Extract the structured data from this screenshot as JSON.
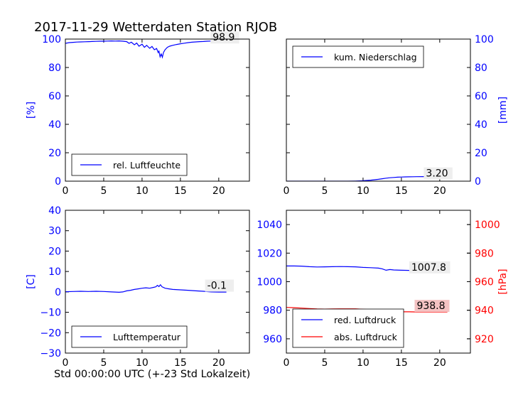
{
  "title": "2017-11-29 Wetterdaten Station RJOB",
  "xlabel": "Std 00:00:00 UTC (+-23 Std Lokalzeit)",
  "colors": {
    "blue": "#0000ff",
    "red": "#ff0000",
    "axis": "#000000",
    "badge_red": "#f4c2c2",
    "badge_grey": "#eeeeee"
  },
  "chart_data": [
    {
      "id": "humidity",
      "type": "line",
      "ylabel": "[%]",
      "ylabel_side": "left",
      "ylabel_color": "#0000ff",
      "xlim": [
        0,
        24
      ],
      "ylim": [
        0,
        100
      ],
      "xticks": [
        0,
        5,
        10,
        15,
        20
      ],
      "yticks": [
        0,
        20,
        40,
        60,
        80,
        100
      ],
      "tick_side": "left",
      "tick_color": "#0000ff",
      "legend_position": "bottom-left",
      "annotation": {
        "text": "98.9",
        "x": 19.2,
        "y": 98.9,
        "style": "grey"
      },
      "series": [
        {
          "name": "rel. Luftfeuchte",
          "color": "#0000ff",
          "x": [
            0,
            0.5,
            1,
            1.5,
            2,
            2.5,
            3,
            3.5,
            4,
            4.5,
            5,
            5.5,
            6,
            6.5,
            7,
            7.5,
            8,
            8.3,
            8.6,
            9,
            9.3,
            9.6,
            10,
            10.3,
            10.6,
            11,
            11.3,
            11.6,
            11.9,
            12.1,
            12.2,
            12.35,
            12.5,
            12.65,
            12.8,
            13,
            13.3,
            13.6,
            14,
            14.5,
            15,
            15.5,
            16,
            16.5,
            17,
            17.5,
            18,
            18.5,
            19,
            19.5,
            20,
            20.5,
            21
          ],
          "y": [
            97,
            97.5,
            97.7,
            97.9,
            98,
            98.1,
            98.2,
            98.3,
            98.4,
            98.5,
            98.5,
            98.6,
            98.7,
            98.6,
            98.7,
            98.5,
            98.2,
            97,
            97.8,
            96,
            97.2,
            95,
            96.4,
            94.2,
            95.6,
            93.5,
            94.8,
            92.5,
            93.4,
            90.5,
            91.5,
            87.5,
            89.5,
            87.2,
            90.6,
            92.5,
            94.2,
            95,
            95.6,
            96.2,
            96.7,
            97.1,
            97.5,
            97.8,
            98,
            98.2,
            98.3,
            98.5,
            98.6,
            98.7,
            98.8,
            98.9,
            98.9
          ]
        }
      ]
    },
    {
      "id": "precip",
      "type": "line",
      "ylabel": "[mm]",
      "ylabel_side": "right",
      "ylabel_color": "#0000ff",
      "xlim": [
        0,
        24
      ],
      "ylim": [
        0,
        100
      ],
      "xticks": [
        0,
        5,
        10,
        15,
        20
      ],
      "yticks": [
        0,
        20,
        40,
        60,
        80,
        100
      ],
      "tick_side": "right",
      "tick_color": "#0000ff",
      "legend_position": "top-left",
      "annotation": {
        "text": "3.20",
        "x": 18.2,
        "y": 3.2,
        "style": "grey"
      },
      "series": [
        {
          "name": "kum. Niederschlag",
          "color": "#0000ff",
          "x": [
            0,
            2,
            4,
            6,
            8,
            9,
            10,
            10.5,
            11,
            11.5,
            12,
            12.5,
            13,
            13.5,
            14,
            14.5,
            15,
            15.5,
            16,
            16.5,
            17,
            18,
            19,
            20,
            21
          ],
          "y": [
            0,
            0,
            0,
            0,
            0,
            0.1,
            0.3,
            0.5,
            0.7,
            1.0,
            1.3,
            1.7,
            2.1,
            2.4,
            2.6,
            2.8,
            2.9,
            3.0,
            3.05,
            3.1,
            3.15,
            3.2,
            3.2,
            3.2,
            3.2
          ]
        }
      ]
    },
    {
      "id": "temperature",
      "type": "line",
      "ylabel": "[C]",
      "ylabel_side": "left",
      "ylabel_color": "#0000ff",
      "xlim": [
        0,
        24
      ],
      "ylim": [
        -30,
        40
      ],
      "xticks": [
        0,
        5,
        10,
        15,
        20
      ],
      "yticks": [
        -30,
        -20,
        -10,
        0,
        10,
        20,
        30,
        40
      ],
      "tick_side": "left",
      "tick_color": "#0000ff",
      "legend_position": "bottom-left",
      "annotation": {
        "text": "-0.1",
        "x": 18.5,
        "y": 1.5,
        "style": "grey"
      },
      "series": [
        {
          "name": "Lufttemperatur",
          "color": "#0000ff",
          "x": [
            0,
            1,
            2,
            3,
            4,
            5,
            6,
            7,
            7.5,
            8,
            8.5,
            9,
            9.5,
            10,
            10.5,
            11,
            11.5,
            11.8,
            12,
            12.2,
            12.4,
            12.6,
            13,
            13.5,
            14,
            15,
            16,
            17,
            18,
            19,
            20,
            21
          ],
          "y": [
            0.1,
            0.2,
            0.3,
            0.2,
            0.3,
            0.2,
            0,
            -0.2,
            0,
            0.5,
            0.8,
            1.2,
            1.5,
            1.8,
            2.0,
            1.8,
            2.2,
            2.5,
            3.2,
            2.6,
            3.5,
            2.5,
            1.8,
            1.5,
            1.2,
            1.0,
            0.8,
            0.5,
            0.3,
            0,
            -0.1,
            -0.1
          ]
        }
      ]
    },
    {
      "id": "pressure",
      "type": "line",
      "ylabel": "[hPa]",
      "ylabel_side": "right",
      "ylabel_color": "#ff0000",
      "xlim": [
        0,
        24
      ],
      "xticks": [
        0,
        5,
        10,
        15,
        20
      ],
      "ylim": [
        950,
        1050
      ],
      "yticks": [
        960,
        980,
        1000,
        1020,
        1040
      ],
      "tick_side": "left",
      "tick_color": "#0000ff",
      "ylim_right": [
        910,
        1010
      ],
      "yticks_right": [
        920,
        940,
        960,
        980,
        1000
      ],
      "tick_color_right": "#ff0000",
      "legend_position": "bottom-left",
      "annotations": [
        {
          "text": "1007.8",
          "x": 16.3,
          "y": 1007.8,
          "style": "grey",
          "axis": "left"
        },
        {
          "text": "938.8",
          "x": 17.0,
          "y": 940.8,
          "style": "red",
          "axis": "right"
        }
      ],
      "series": [
        {
          "name": "red. Luftdruck",
          "color": "#0000ff",
          "axis": "left",
          "x": [
            0,
            1,
            2,
            3,
            4,
            5,
            6,
            7,
            8,
            9,
            10,
            11,
            12,
            12.5,
            13,
            13.5,
            14,
            15,
            16,
            17,
            18,
            19,
            20,
            21
          ],
          "y": [
            1011,
            1011,
            1010.9,
            1010.5,
            1010.3,
            1010.4,
            1010.5,
            1010.6,
            1010.5,
            1010.4,
            1010.0,
            1009.8,
            1009.5,
            1009.0,
            1008.0,
            1008.5,
            1008.2,
            1008.0,
            1007.9,
            1007.8,
            1007.8,
            1007.8,
            1007.8,
            1007.8
          ]
        },
        {
          "name": "abs. Luftdruck",
          "color": "#ff0000",
          "axis": "right",
          "x": [
            0,
            1,
            2,
            3,
            4,
            5,
            6,
            7,
            8,
            9,
            10,
            11,
            12,
            12.5,
            13,
            13.5,
            14,
            15,
            16,
            17,
            18,
            19,
            20,
            21
          ],
          "y": [
            942.0,
            941.8,
            941.5,
            941.2,
            940.9,
            940.8,
            940.9,
            941.0,
            941.0,
            941.0,
            940.7,
            940.4,
            940.0,
            939.5,
            939.2,
            939.4,
            939.0,
            938.9,
            938.9,
            938.8,
            938.8,
            938.8,
            938.8,
            938.8
          ]
        }
      ]
    }
  ]
}
